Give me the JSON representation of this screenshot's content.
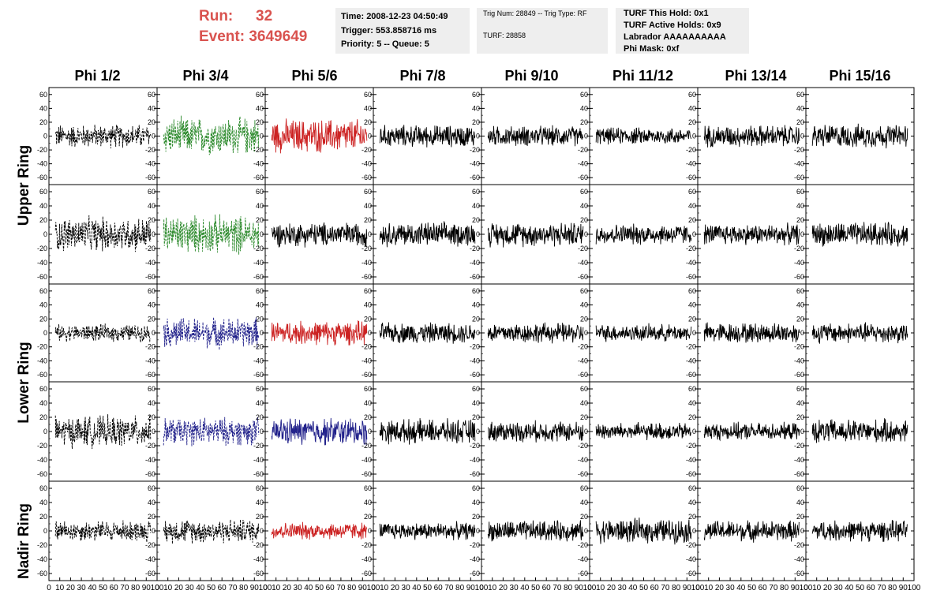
{
  "header": {
    "run_label": "Run:",
    "run_value": "32",
    "event_label": "Event:",
    "event_value": "3649649"
  },
  "info_box_1": {
    "time": "Time: 2008-12-23 04:50:49",
    "trigger": "Trigger: 553.858716 ms",
    "priority": "Priority: 5 -- Queue: 5"
  },
  "info_box_2": {
    "trig": "Trig Num: 28849 -- Trig Type: RF",
    "turf": "TURF: 28858"
  },
  "info_box_3": {
    "hold": "TURF This Hold: 0x1",
    "active": "TURF Active Holds: 0x9",
    "labrador": "Labrador AAAAAAAAAA",
    "phimask": "Phi Mask: 0xf"
  },
  "columns": [
    "Phi 1/2",
    "Phi 3/4",
    "Phi 5/6",
    "Phi 7/8",
    "Phi 9/10",
    "Phi 11/12",
    "Phi 13/14",
    "Phi 15/16"
  ],
  "rows": [
    "Upper Ring",
    "Lower Ring",
    "Nadir Ring"
  ],
  "chart_data": {
    "type": "line",
    "description_of_grid": "5 rows of panels x 8 phi columns of RF waveforms",
    "xlim": [
      0,
      100
    ],
    "ylim": [
      -70,
      70
    ],
    "y_ticks": [
      -60,
      -40,
      -20,
      0,
      20,
      40,
      60
    ],
    "x_tick_labels": [
      "0",
      "10",
      "20",
      "30",
      "40",
      "50",
      "60",
      "70",
      "80",
      "90",
      "100"
    ],
    "colors": {
      "black": "#000000",
      "green": "#2e8b2e",
      "red": "#cc2222",
      "blue": "#22228b"
    },
    "panels": [
      [
        {
          "color": "black",
          "style": "dashed",
          "amp": 14
        },
        {
          "color": "green",
          "style": "dashed",
          "amp": 22
        },
        {
          "color": "red",
          "style": "solid",
          "amp": 20
        },
        {
          "color": "black",
          "style": "solid",
          "amp": 13
        },
        {
          "color": "black",
          "style": "solid",
          "amp": 12
        },
        {
          "color": "black",
          "style": "solid",
          "amp": 10
        },
        {
          "color": "black",
          "style": "solid",
          "amp": 13
        },
        {
          "color": "black",
          "style": "solid",
          "amp": 14
        }
      ],
      [
        {
          "color": "black",
          "style": "dashed",
          "amp": 20
        },
        {
          "color": "green",
          "style": "dashed",
          "amp": 22
        },
        {
          "color": "black",
          "style": "solid",
          "amp": 14
        },
        {
          "color": "black",
          "style": "solid",
          "amp": 14
        },
        {
          "color": "black",
          "style": "solid",
          "amp": 14
        },
        {
          "color": "black",
          "style": "solid",
          "amp": 12
        },
        {
          "color": "black",
          "style": "solid",
          "amp": 12
        },
        {
          "color": "black",
          "style": "solid",
          "amp": 14
        }
      ],
      [
        {
          "color": "black",
          "style": "dashed",
          "amp": 10
        },
        {
          "color": "blue",
          "style": "dashed",
          "amp": 18
        },
        {
          "color": "red",
          "style": "solid",
          "amp": 14
        },
        {
          "color": "black",
          "style": "solid",
          "amp": 12
        },
        {
          "color": "black",
          "style": "solid",
          "amp": 12
        },
        {
          "color": "black",
          "style": "solid",
          "amp": 10
        },
        {
          "color": "black",
          "style": "solid",
          "amp": 12
        },
        {
          "color": "black",
          "style": "solid",
          "amp": 12
        }
      ],
      [
        {
          "color": "black",
          "style": "dashed",
          "amp": 18
        },
        {
          "color": "blue",
          "style": "dashed",
          "amp": 16
        },
        {
          "color": "blue",
          "style": "solid",
          "amp": 16
        },
        {
          "color": "black",
          "style": "solid",
          "amp": 14
        },
        {
          "color": "black",
          "style": "solid",
          "amp": 12
        },
        {
          "color": "black",
          "style": "solid",
          "amp": 10
        },
        {
          "color": "black",
          "style": "solid",
          "amp": 10
        },
        {
          "color": "black",
          "style": "solid",
          "amp": 14
        }
      ],
      [
        {
          "color": "black",
          "style": "dashed",
          "amp": 12
        },
        {
          "color": "black",
          "style": "dashed",
          "amp": 14
        },
        {
          "color": "red",
          "style": "solid",
          "amp": 10
        },
        {
          "color": "black",
          "style": "solid",
          "amp": 10
        },
        {
          "color": "black",
          "style": "solid",
          "amp": 12
        },
        {
          "color": "black",
          "style": "solid",
          "amp": 14
        },
        {
          "color": "black",
          "style": "solid",
          "amp": 12
        },
        {
          "color": "black",
          "style": "solid",
          "amp": 12
        }
      ]
    ]
  }
}
